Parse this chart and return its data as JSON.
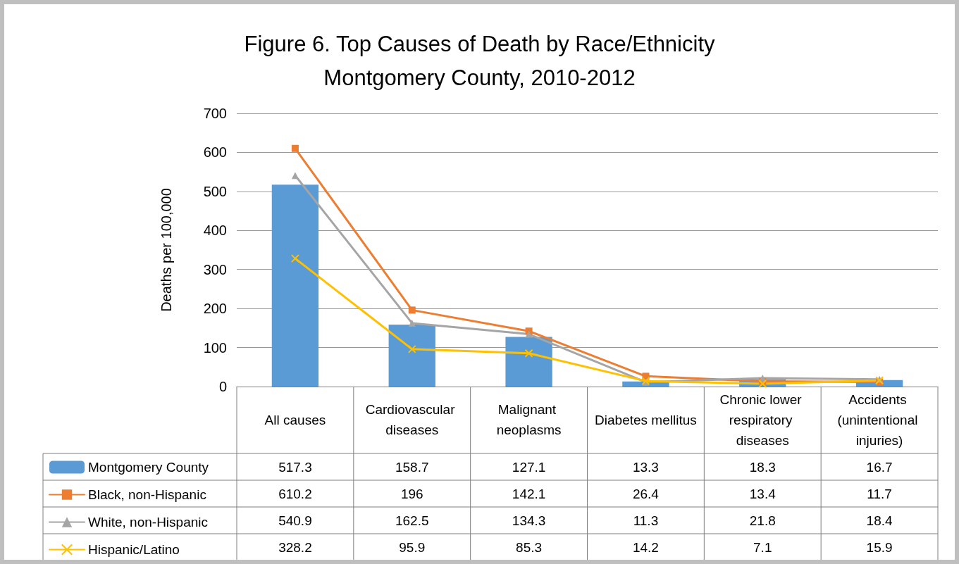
{
  "chart_data": {
    "type": "bar",
    "title": "Figure 6. Top Causes of Death by Race/Ethnicity",
    "subtitle": "Montgomery County, 2010-2012",
    "ylabel": "Deaths per 100,000",
    "categories": [
      "All causes",
      "Cardiovascular diseases",
      "Malignant neoplasms",
      "Diabetes mellitus",
      "Chronic lower respiratory diseases",
      "Accidents (unintentional injuries)"
    ],
    "series": [
      {
        "name": "Montgomery County",
        "color": "#5b9bd5",
        "values": [
          517.3,
          158.7,
          127.1,
          13.3,
          18.3,
          16.7
        ]
      },
      {
        "name": "Black, non-Hispanic",
        "type": "line",
        "color": "#ed7d31",
        "marker": "square",
        "values": [
          610.2,
          196,
          142.1,
          26.4,
          13.4,
          11.7
        ]
      },
      {
        "name": "White, non-Hispanic",
        "type": "line",
        "color": "#a5a5a5",
        "marker": "triangle",
        "values": [
          540.9,
          162.5,
          134.3,
          11.3,
          21.8,
          18.4
        ]
      },
      {
        "name": "Hispanic/Latino",
        "type": "line",
        "color": "#ffc000",
        "marker": "cross",
        "values": [
          328.2,
          95.9,
          85.3,
          14.2,
          7.1,
          15.9
        ]
      }
    ],
    "ylim": [
      0,
      700
    ],
    "yticks": [
      0,
      100,
      200,
      300,
      400,
      500,
      600,
      700
    ],
    "grid": "y",
    "legend": "bottom left",
    "data_labels": true
  }
}
